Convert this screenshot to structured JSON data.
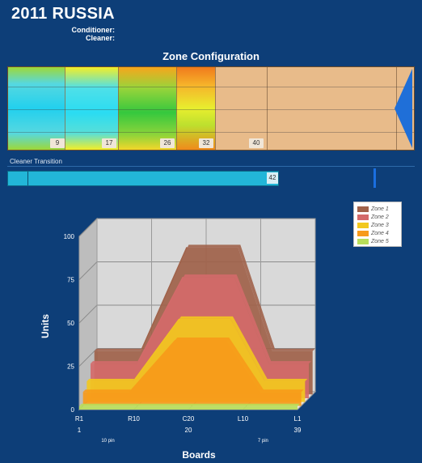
{
  "header": {
    "title": "2011 RUSSIA",
    "conditioner_label": "Conditioner:",
    "cleaner_label": "Cleaner:"
  },
  "zone_config": {
    "title": "Zone Configuration",
    "markers": [
      "9",
      "17",
      "26",
      "32",
      "40"
    ]
  },
  "cleaner_transition": {
    "label": "Cleaner Transition",
    "value": "42"
  },
  "chart_data": {
    "type": "area",
    "ylabel": "Units",
    "xlabel": "Boards",
    "ylim": [
      0,
      100
    ],
    "y_ticks": [
      "0",
      "25",
      "50",
      "75",
      "100"
    ],
    "x_tick_labels": [
      "R1",
      "R10",
      "C20",
      "L10",
      "L1"
    ],
    "x_numbers": [
      "1",
      "20",
      "39"
    ],
    "x_notes": [
      "10 pin",
      "7 pin"
    ],
    "legend": [
      "Zone 1",
      "Zone 2",
      "Zone 3",
      "Zone 4",
      "Zone 5"
    ],
    "colors": [
      "#a0624a",
      "#d46a6a",
      "#f2c81e",
      "#f79a1a",
      "#b8de5a"
    ],
    "x": [
      1,
      9,
      17,
      26,
      32,
      39
    ],
    "series": [
      {
        "name": "Zone 1",
        "values": [
          25,
          25,
          85,
          85,
          25,
          25
        ]
      },
      {
        "name": "Zone 2",
        "values": [
          20,
          20,
          70,
          70,
          20,
          20
        ]
      },
      {
        "name": "Zone 3",
        "values": [
          12,
          12,
          48,
          48,
          12,
          12
        ]
      },
      {
        "name": "Zone 4",
        "values": [
          8,
          8,
          38,
          38,
          8,
          8
        ]
      },
      {
        "name": "Zone 5",
        "values": [
          2,
          2,
          2,
          2,
          2,
          2
        ]
      }
    ]
  }
}
